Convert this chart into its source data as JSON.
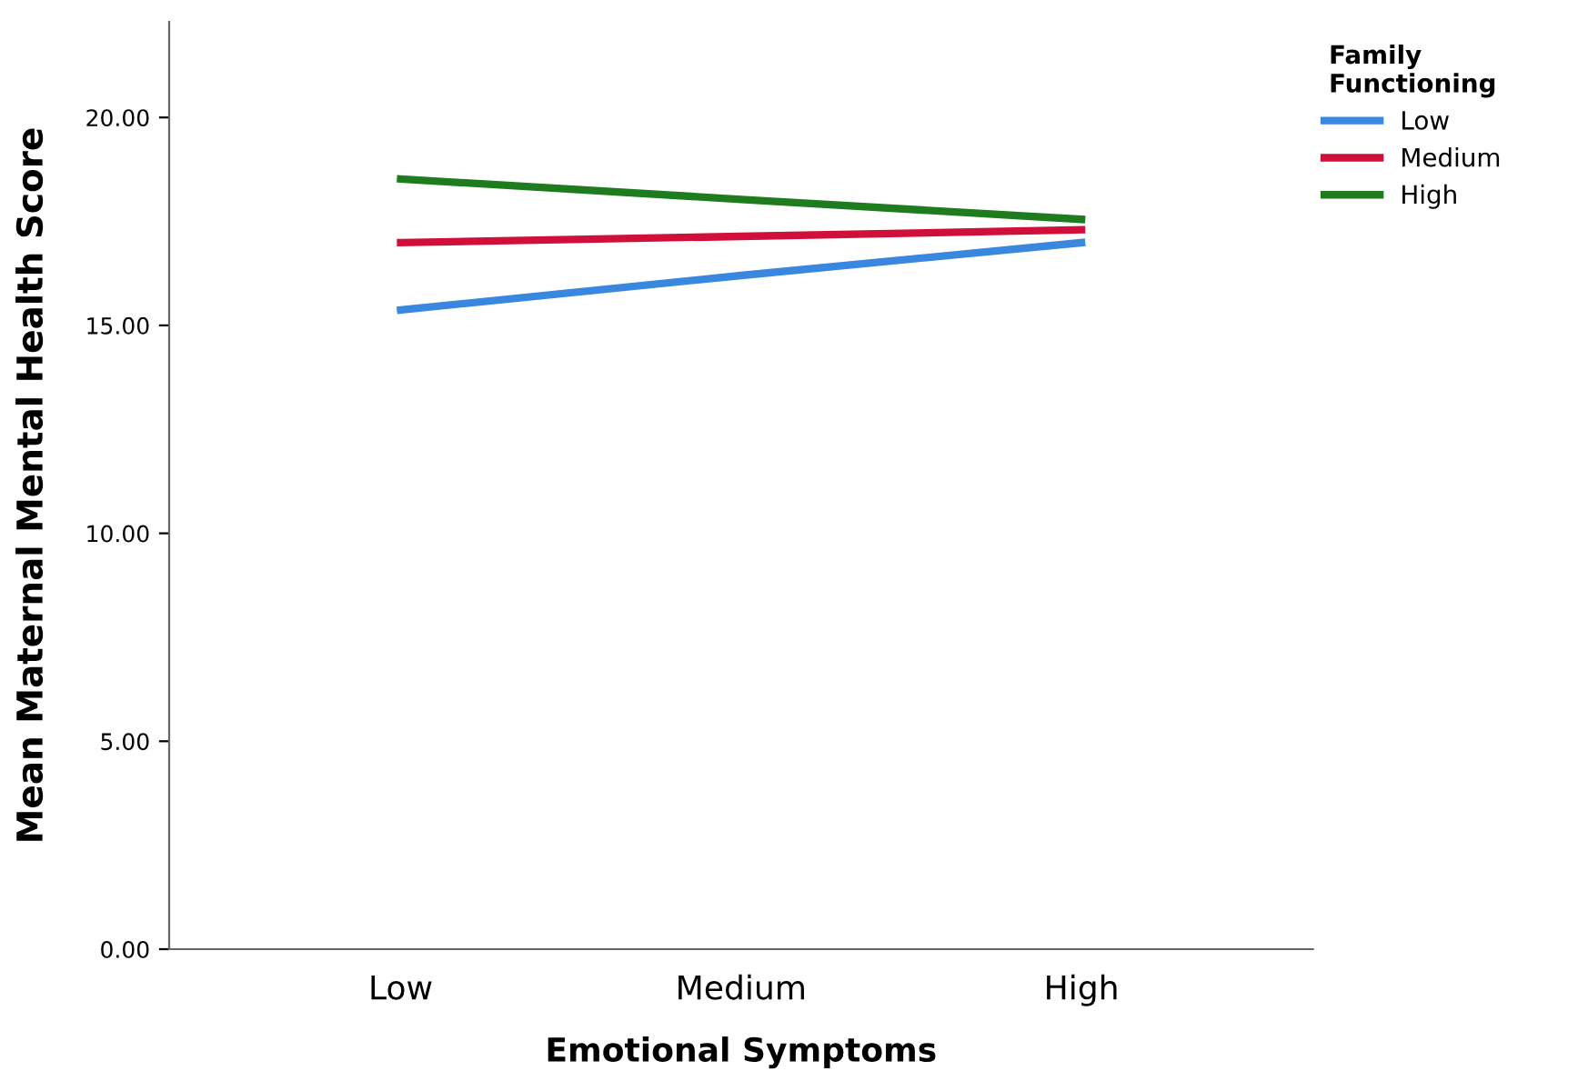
{
  "chart_data": {
    "type": "line",
    "xlabel": "Emotional Symptoms",
    "ylabel": "Mean Maternal Mental Health Score",
    "legend_title": "Family\nFunctioning",
    "categories": [
      "Low",
      "Medium",
      "High"
    ],
    "series": [
      {
        "name": "Low",
        "color": "#3a87e0",
        "values": [
          15.37,
          16.2,
          16.99
        ]
      },
      {
        "name": "Medium",
        "color": "#d0103a",
        "values": [
          16.99,
          17.14,
          17.3
        ]
      },
      {
        "name": "High",
        "color": "#1e7b1e",
        "values": [
          18.52,
          18.03,
          17.55
        ]
      }
    ],
    "ylim": [
      0,
      22.3
    ],
    "yticks": [
      {
        "value": 0,
        "label": "0.00"
      },
      {
        "value": 5,
        "label": "5.00"
      },
      {
        "value": 10,
        "label": "10.00"
      },
      {
        "value": 15,
        "label": "15.00"
      },
      {
        "value": 20,
        "label": "20.00"
      }
    ],
    "grid": false,
    "legend": "top right",
    "marker": "none",
    "line_style": "solid"
  }
}
